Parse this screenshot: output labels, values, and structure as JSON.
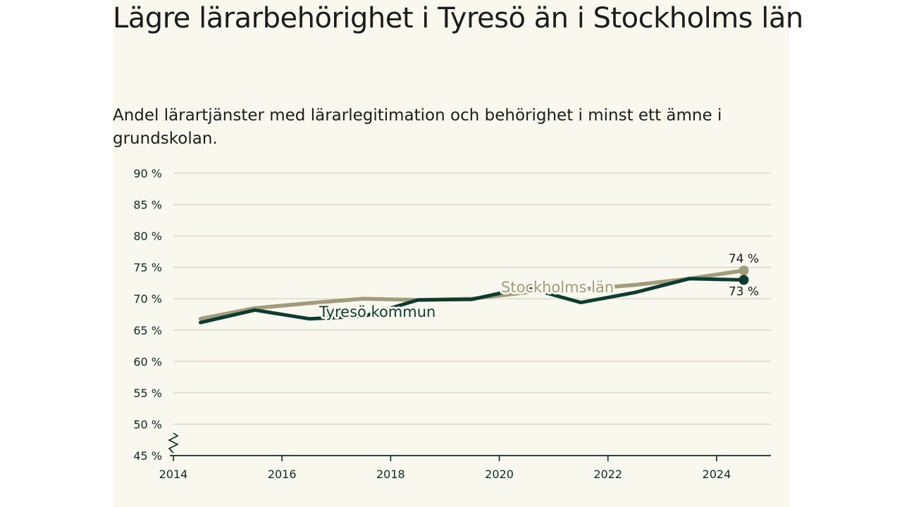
{
  "chart_data": {
    "type": "line",
    "title": "Lägre lärarbehörighet i Tyresö än i Stockholms län",
    "subtitle": "Andel lärartjänster med lärarlegitimation och behörighet i minst ett ämne i grundskolan.",
    "xlabel": "",
    "ylabel": "",
    "ylim": [
      45,
      90
    ],
    "xlim": [
      2014,
      2025
    ],
    "yticks": [
      90,
      85,
      80,
      75,
      70,
      65,
      60,
      55,
      50,
      45
    ],
    "ytick_labels": [
      "90 %",
      "85 %",
      "80 %",
      "75 %",
      "70 %",
      "65 %",
      "60 %",
      "55 %",
      "50 %",
      "45 %"
    ],
    "xticks": [
      "2014",
      "2016",
      "2018",
      "2020",
      "2022",
      "2024"
    ],
    "grid": true,
    "x": [
      2014.5,
      2015.5,
      2016.5,
      2017.5,
      2018.5,
      2019.5,
      2020.5,
      2021.5,
      2022.5,
      2023.5,
      2024.5
    ],
    "series": [
      {
        "name": "Stockholms län",
        "color": "#a09c7c",
        "values": [
          66.8,
          68.5,
          69.3,
          70.0,
          69.8,
          70.0,
          71.0,
          71.5,
          72.2,
          73.2,
          74.5
        ],
        "end_label": "74 %"
      },
      {
        "name": "Tyresö kommun",
        "color": "#0d3b30",
        "values": [
          66.2,
          68.2,
          66.8,
          67.2,
          69.8,
          69.9,
          71.8,
          69.4,
          71.0,
          73.2,
          73.0
        ],
        "end_label": "73 %"
      }
    ]
  }
}
